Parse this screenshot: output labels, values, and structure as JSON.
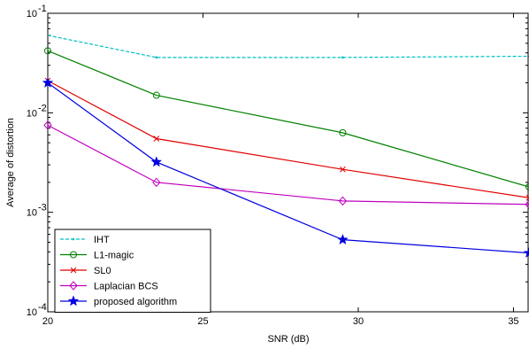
{
  "chart_data": {
    "type": "line",
    "xlabel": "SNR (dB)",
    "ylabel": "Average of distortion",
    "yscale": "log",
    "xlim": [
      20,
      35.5
    ],
    "ylim": [
      0.0001,
      0.1
    ],
    "xticks": [
      20,
      25,
      30,
      35
    ],
    "yticks": [
      {
        "value": 0.0001,
        "base": "10",
        "exp": "-4"
      },
      {
        "value": 0.001,
        "base": "10",
        "exp": "-3"
      },
      {
        "value": 0.01,
        "base": "10",
        "exp": "-2"
      },
      {
        "value": 0.1,
        "base": "10",
        "exp": "-1"
      }
    ],
    "grid": false,
    "legend_position": "bottom-left",
    "series": [
      {
        "name": "IHT",
        "color": "#00c0c0",
        "marker": "dot",
        "dashed": true,
        "x": [
          20,
          23.5,
          29.5,
          35.5
        ],
        "y": [
          0.06,
          0.036,
          0.036,
          0.037
        ]
      },
      {
        "name": "L1-magic",
        "color": "#008000",
        "marker": "circle",
        "dashed": false,
        "x": [
          20,
          23.5,
          29.5,
          35.5
        ],
        "y": [
          0.042,
          0.015,
          0.0063,
          0.0018
        ]
      },
      {
        "name": "SL0",
        "color": "#e00000",
        "marker": "x",
        "dashed": false,
        "x": [
          20,
          23.5,
          29.5,
          35.5
        ],
        "y": [
          0.021,
          0.0055,
          0.0027,
          0.0014
        ]
      },
      {
        "name": "Laplacian BCS",
        "color": "#c000c0",
        "marker": "diamond",
        "dashed": false,
        "x": [
          20,
          23.5,
          29.5,
          35.5
        ],
        "y": [
          0.0075,
          0.002,
          0.0013,
          0.0012
        ]
      },
      {
        "name": "proposed algorithm",
        "color": "#0000e0",
        "marker": "star",
        "dashed": false,
        "x": [
          20,
          23.5,
          29.5,
          35.5
        ],
        "y": [
          0.02,
          0.0032,
          0.00053,
          0.00039
        ]
      }
    ]
  }
}
